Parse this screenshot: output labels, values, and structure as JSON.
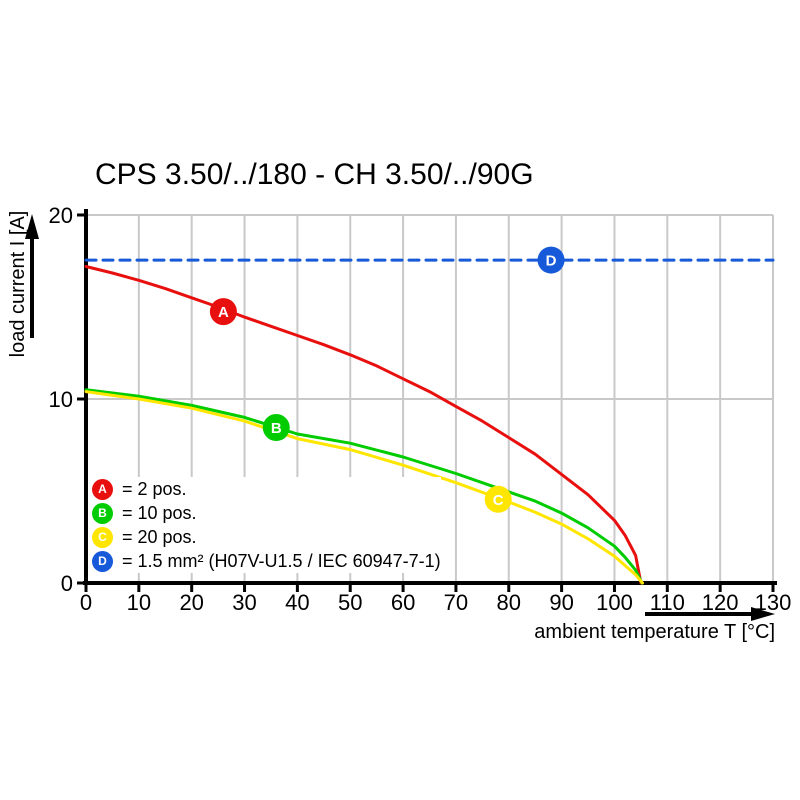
{
  "chart": {
    "title": "CPS 3.50/../180 - CH 3.50/../90G",
    "x_axis_label": "ambient temperature T [°C]",
    "y_axis_label": "load current I [A]"
  },
  "legend": {
    "items": [
      {
        "letter": "A",
        "color": "#e8100e",
        "label": "= 2 pos."
      },
      {
        "letter": "B",
        "color": "#00cc00",
        "label": "= 10 pos."
      },
      {
        "letter": "C",
        "color": "#ffe600",
        "label": "= 20 pos."
      },
      {
        "letter": "D",
        "color": "#1659d9",
        "label": "= 1.5 mm² (H07V-U1.5 / IEC 60947-7-1)"
      }
    ]
  },
  "chart_data": {
    "type": "line",
    "title": "CPS 3.50/../180 - CH 3.50/../90G",
    "xlabel": "ambient temperature T [°C]",
    "ylabel": "load current I [A]",
    "xlim": [
      0,
      130
    ],
    "ylim": [
      0,
      20
    ],
    "xticks": [
      0,
      10,
      20,
      30,
      40,
      50,
      60,
      70,
      80,
      90,
      100,
      110,
      120,
      130
    ],
    "yticks": [
      0,
      10,
      20
    ],
    "grid": true,
    "grid_color": "#c9c9c9",
    "legend_position": "lower-left-inside",
    "series": [
      {
        "name": "A = 2 pos.",
        "letter": "A",
        "color": "#e8100e",
        "style": "solid",
        "marker": {
          "t": 26,
          "i": 14.75
        },
        "points": [
          [
            0,
            17.2
          ],
          [
            5,
            16.85
          ],
          [
            10,
            16.45
          ],
          [
            15,
            16.0
          ],
          [
            20,
            15.5
          ],
          [
            25,
            15.0
          ],
          [
            30,
            14.45
          ],
          [
            35,
            13.95
          ],
          [
            40,
            13.45
          ],
          [
            45,
            12.95
          ],
          [
            50,
            12.4
          ],
          [
            55,
            11.8
          ],
          [
            60,
            11.1
          ],
          [
            65,
            10.4
          ],
          [
            70,
            9.6
          ],
          [
            75,
            8.8
          ],
          [
            80,
            7.9
          ],
          [
            85,
            7.0
          ],
          [
            90,
            5.9
          ],
          [
            95,
            4.8
          ],
          [
            100,
            3.4
          ],
          [
            102,
            2.6
          ],
          [
            104,
            1.5
          ],
          [
            105,
            0
          ]
        ]
      },
      {
        "name": "B = 10 pos.",
        "letter": "B",
        "color": "#00cc00",
        "style": "solid",
        "marker": {
          "t": 36,
          "i": 8.45
        },
        "points": [
          [
            0,
            10.5
          ],
          [
            10,
            10.15
          ],
          [
            20,
            9.65
          ],
          [
            30,
            9.0
          ],
          [
            40,
            8.1
          ],
          [
            50,
            7.6
          ],
          [
            60,
            6.85
          ],
          [
            70,
            5.95
          ],
          [
            80,
            4.95
          ],
          [
            85,
            4.45
          ],
          [
            90,
            3.8
          ],
          [
            95,
            3.0
          ],
          [
            100,
            2.0
          ],
          [
            102,
            1.4
          ],
          [
            104,
            0.7
          ],
          [
            105.2,
            0
          ]
        ]
      },
      {
        "name": "C = 20 pos.",
        "letter": "C",
        "color": "#ffe600",
        "style": "solid",
        "marker": {
          "t": 78,
          "i": 4.55
        },
        "points": [
          [
            0,
            10.4
          ],
          [
            10,
            10.0
          ],
          [
            20,
            9.5
          ],
          [
            30,
            8.8
          ],
          [
            40,
            7.85
          ],
          [
            50,
            7.25
          ],
          [
            60,
            6.4
          ],
          [
            70,
            5.45
          ],
          [
            80,
            4.4
          ],
          [
            85,
            3.85
          ],
          [
            90,
            3.2
          ],
          [
            95,
            2.4
          ],
          [
            100,
            1.45
          ],
          [
            102,
            0.95
          ],
          [
            104,
            0.45
          ],
          [
            105.3,
            0
          ]
        ]
      },
      {
        "name": "D = 1.5 mm² (H07V-U1.5 / IEC 60947-7-1)",
        "letter": "D",
        "color": "#1659d9",
        "style": "dashed",
        "marker": {
          "t": 88,
          "i": 17.55
        },
        "points": [
          [
            0,
            17.55
          ],
          [
            130,
            17.55
          ]
        ]
      }
    ]
  }
}
